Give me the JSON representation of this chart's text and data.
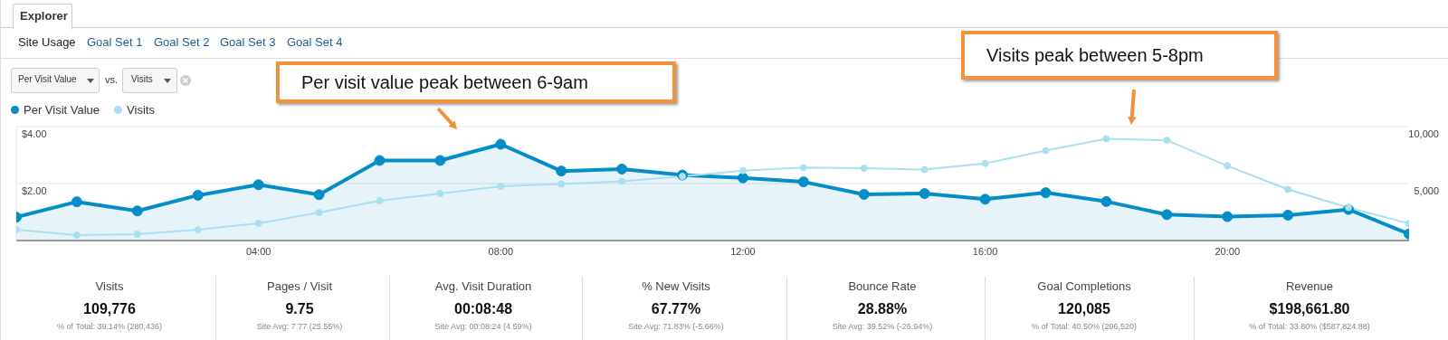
{
  "chart_data": {
    "type": "line",
    "annotations": [
      "Explorer",
      "Site Usage",
      "Goal Set 1",
      "Goal Set 2",
      "Goal Set 3",
      "Goal Set 4",
      "vs.",
      "Per visit value peak between 6-9am",
      "Visits peak between 5-8pm",
      "Visits",
      "109,776",
      "% of Total: 39.14% (280,436)",
      "Pages / Visit",
      "9.75",
      "Site Avg: 7.77 (25.55%)",
      "Avg. Visit Duration",
      "00:08:48",
      "Site Avg: 00:08:24 (4.59%)",
      "% New Visits",
      "67.77%",
      "Site Avg: 71.83% (-5.66%)",
      "Bounce Rate",
      "28.88%",
      "Site Avg: 39.52% (-26.94%)",
      "Goal Completions",
      "120,085",
      "% of Total: 40.50% (296,520)",
      "Revenue",
      "$198,661.80",
      "% of Total: 33.80% ($587,824.88)"
    ],
    "x": [
      0,
      1,
      2,
      3,
      4,
      5,
      6,
      7,
      8,
      9,
      10,
      11,
      12,
      13,
      14,
      15,
      16,
      17,
      18,
      19,
      20,
      21,
      22,
      23
    ],
    "xlim": [
      0,
      23
    ],
    "xticks": [
      {
        "value": 4,
        "label": "04:00"
      },
      {
        "value": 8,
        "label": "08:00"
      },
      {
        "value": 12,
        "label": "12:00"
      },
      {
        "value": 16,
        "label": "16:00"
      },
      {
        "value": 20,
        "label": "20:00"
      }
    ],
    "ylim": [
      0,
      4
    ],
    "yticks": [
      {
        "value": 2,
        "label": "$2.00"
      },
      {
        "value": 4,
        "label": "$4.00"
      }
    ],
    "y2lim": [
      0,
      10000
    ],
    "y2ticks": [
      {
        "value": 5000,
        "label": "5,000"
      },
      {
        "value": 10000,
        "label": "10,000"
      }
    ],
    "series": [
      {
        "name": "Per Visit Value",
        "type": "area",
        "color": "#058dc7",
        "values": [
          0.82,
          1.36,
          1.04,
          1.59,
          1.96,
          1.61,
          2.81,
          2.81,
          3.38,
          2.44,
          2.51,
          2.3,
          2.2,
          2.06,
          1.62,
          1.65,
          1.45,
          1.68,
          1.37,
          0.91,
          0.84,
          0.89,
          1.09,
          0.23
        ]
      },
      {
        "name": "Visits",
        "type": "line",
        "axis": "y2",
        "color": "#aadff3",
        "values": [
          950,
          480,
          560,
          950,
          1510,
          2460,
          3490,
          4130,
          4760,
          4960,
          5200,
          5630,
          6140,
          6400,
          6350,
          6230,
          6770,
          7890,
          8930,
          8800,
          6560,
          4480,
          2900,
          1490
        ]
      }
    ],
    "grid": "y",
    "legend": "top left",
    "marker": "circle"
  }
}
